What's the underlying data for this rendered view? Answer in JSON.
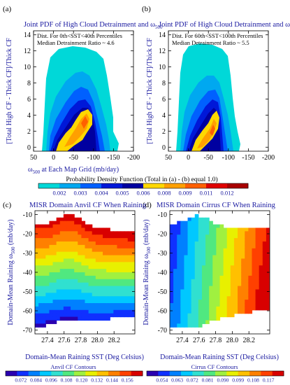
{
  "figure": {
    "colorbar_top": {
      "title": "Probability Density Function (Total in (a) - (b) equal 1.0)",
      "ticks": [
        "0.002",
        "0.003",
        "0.004",
        "0.005",
        "0.006",
        "0.008",
        "0.009",
        "0.011",
        "0.012"
      ],
      "colors": [
        "#00d8d8",
        "#00a8f0",
        "#0060ff",
        "#0018d8",
        "#0000a0",
        "#ffd800",
        "#ffa000",
        "#ff6000",
        "#e00000",
        "#a80000"
      ]
    },
    "colorbar_bottom_left": {
      "title": "Anvil CF Contours",
      "ticks": [
        "0.072",
        "0.084",
        "0.096",
        "0.108",
        "0.120",
        "0.132",
        "0.144",
        "0.156"
      ]
    },
    "colorbar_bottom_right": {
      "title": "Cirrus CF Contours",
      "ticks": [
        "0.054",
        "0.063",
        "0.072",
        "0.081",
        "0.090",
        "0.099",
        "0.108",
        "0.117"
      ]
    },
    "rain_colors": [
      "#2a00b0",
      "#1030ff",
      "#0080ff",
      "#00c8ff",
      "#30e0d0",
      "#50e880",
      "#a0f040",
      "#e8f000",
      "#ffc000",
      "#ff8000",
      "#ff4000",
      "#d80000"
    ]
  },
  "chart_data": [
    {
      "panel": "(a)",
      "type": "heatmap",
      "title": "Joint PDF of High Cloud Detrainment and ω500",
      "title_main": "Joint PDF of High Cloud Detrainment and ω",
      "title_sub": "500",
      "annotation": [
        "Dist. For 0th<SST<40th Percentiles",
        "Median Detrainment Ratio ~ 4.6"
      ],
      "xlabel_main": "ω",
      "xlabel_sub": "500",
      "xlabel_rest": " at Each Map Grid (mb/day)",
      "ylabel": "[Total High CF - Thick CF]/Thick CF",
      "xlim": [
        50,
        -200
      ],
      "ylim": [
        -0.5,
        14.5
      ],
      "xticks": [
        "50",
        "0",
        "-50",
        "-100",
        "-150",
        "-200"
      ],
      "yticks": [
        "0",
        "2",
        "4",
        "6",
        "8",
        "10",
        "12",
        "14"
      ]
    },
    {
      "panel": "(b)",
      "type": "heatmap",
      "title": "Joint PDF of High Cloud Detrainment and ω500",
      "title_main": "Joint PDF of High Cloud Detrainment and ω",
      "title_sub": "500",
      "annotation": [
        "Dist. For 60th<SST<100th Percentiles",
        "Median Detrainment Ratio ~ 5.5"
      ],
      "xlabel_main": "ω",
      "xlabel_sub": "500",
      "xlabel_rest": " at Each Map Grid (mb/day)",
      "ylabel": "[Total High CF - Thick CF]/Thick CF",
      "xlim": [
        50,
        -200
      ],
      "ylim": [
        -0.5,
        14.5
      ],
      "xticks": [
        "50",
        "0",
        "-50",
        "-100",
        "-150",
        "-200"
      ],
      "yticks": [
        "0",
        "2",
        "4",
        "6",
        "8",
        "10",
        "12",
        "14"
      ]
    },
    {
      "panel": "(c)",
      "type": "heatmap",
      "title": "MISR Domain Anvil CF When Raining",
      "xlabel": "Domain-Mean Raining SST (Deg Celsius)",
      "ylabel_main": "Domain-Mean Raining ω",
      "ylabel_sub": "500",
      "ylabel_rest": " (mb/day)",
      "xlim": [
        27.25,
        28.45
      ],
      "ylim": [
        -72,
        -8
      ],
      "xticks": [
        "27.4",
        "27.6",
        "27.8",
        "28.0",
        "28.2"
      ],
      "yticks": [
        "-70",
        "-60",
        "-50",
        "-40",
        "-30",
        "-20",
        "-10"
      ]
    },
    {
      "panel": "(d)",
      "type": "heatmap",
      "title": "MISR Domain Cirrus CF When Raining",
      "xlabel": "Domain-Mean Raining SST (Deg Celsius)",
      "ylabel_main": "Domain-Mean Raining ω",
      "ylabel_sub": "500",
      "ylabel_rest": " (mb/day)",
      "xlim": [
        27.25,
        28.45
      ],
      "ylim": [
        -72,
        -8
      ],
      "xticks": [
        "27.4",
        "27.6",
        "27.8",
        "28.0",
        "28.2"
      ],
      "yticks": [
        "-70",
        "-60",
        "-50",
        "-40",
        "-30",
        "-20",
        "-10"
      ]
    }
  ]
}
